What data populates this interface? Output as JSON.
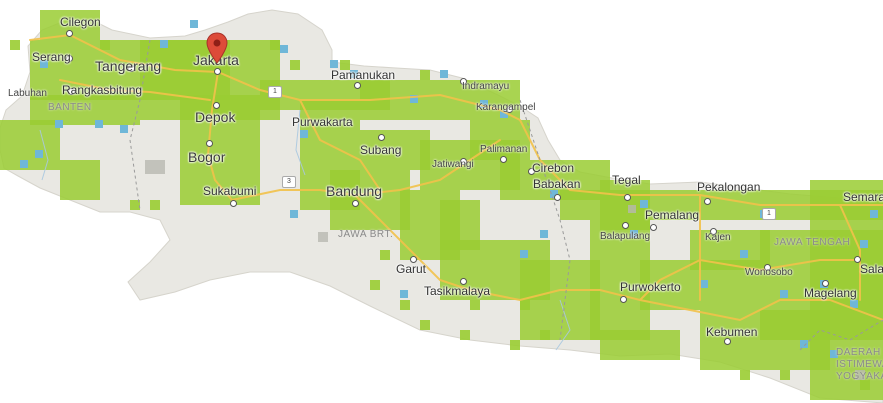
{
  "map": {
    "cities": {
      "cilegon": "Cilegon",
      "serang": "Serang",
      "tangerang": "Tangerang",
      "jakarta": "Jakarta",
      "labuhan": "Labuhan",
      "rangkasbitung": "Rangkasbitung",
      "depok": "Depok",
      "bogor": "Bogor",
      "sukabumi": "Sukabumi",
      "pamanukan": "Pamanukan",
      "indramayu": "Indramayu",
      "karangampel": "Karangampel",
      "purwakarta": "Purwakarta",
      "subang": "Subang",
      "palimanan": "Palimanan",
      "jatiwangi": "Jatiwangi",
      "cirebon": "Cirebon",
      "babakan": "Babakan",
      "tegal": "Tegal",
      "pekalongan": "Pekalongan",
      "semarang": "Semara",
      "pemalang": "Pemalang",
      "bandung": "Bandung",
      "balapulang": "Balapulang",
      "kajen": "Kajen",
      "garut": "Garut",
      "tasikmalaya": "Tasikmalaya",
      "purwokerto": "Purwokerto",
      "wonosobo": "Wonosobo",
      "salatiga": "Sala",
      "magelang": "Magelang",
      "kebumen": "Kebumen"
    },
    "regions": {
      "banten": "BANTEN",
      "jawa_barat": "JAWA BRT.",
      "jawa_tengah": "JAWA TENGAH",
      "diy_1": "DAERAH",
      "diy_2": "ISTIMEWA",
      "diy_3": "YOGYAKAR"
    },
    "road_shields": [
      "1",
      "3",
      "1"
    ],
    "colors": {
      "sea": "#ffffff",
      "land": "#e9e8e3",
      "coverage": "#9acd32",
      "coverage_alt": "#6fb7d8",
      "road": "#f7d978",
      "marker": "#dd4b39"
    },
    "marker_icon": "map-pin-icon"
  }
}
